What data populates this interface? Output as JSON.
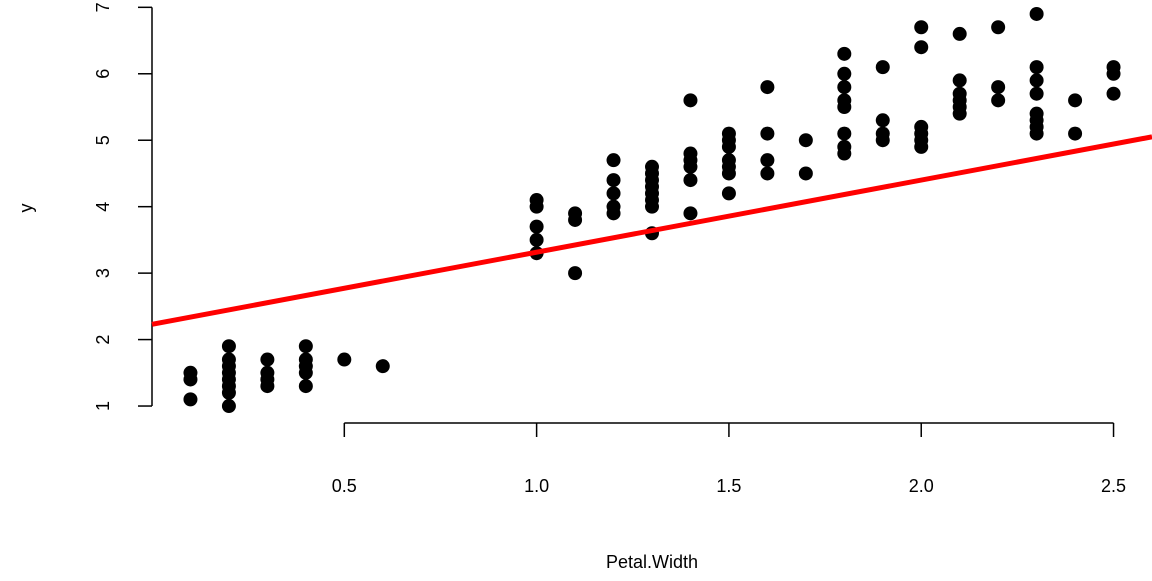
{
  "chart_data": {
    "type": "scatter",
    "title": "",
    "xlabel": "Petal.Width",
    "ylabel": "y",
    "xlim": [
      0.0,
      2.6
    ],
    "ylim": [
      0.85,
      7.05
    ],
    "x_ticks": [
      0.5,
      1.0,
      1.5,
      2.0,
      2.5
    ],
    "x_tick_labels": [
      "0.5",
      "1.0",
      "1.5",
      "2.0",
      "2.5"
    ],
    "y_ticks": [
      1,
      2,
      3,
      4,
      5,
      6,
      7
    ],
    "y_tick_labels": [
      "1",
      "2",
      "3",
      "4",
      "5",
      "6",
      "7"
    ],
    "grid": false,
    "legend": "none",
    "point_color": "#000000",
    "points": [
      [
        0.1,
        1.1
      ],
      [
        0.1,
        1.4
      ],
      [
        0.1,
        1.5
      ],
      [
        0.2,
        1.0
      ],
      [
        0.2,
        1.2
      ],
      [
        0.2,
        1.3
      ],
      [
        0.2,
        1.4
      ],
      [
        0.2,
        1.5
      ],
      [
        0.2,
        1.6
      ],
      [
        0.2,
        1.7
      ],
      [
        0.2,
        1.9
      ],
      [
        0.3,
        1.3
      ],
      [
        0.3,
        1.4
      ],
      [
        0.3,
        1.5
      ],
      [
        0.3,
        1.7
      ],
      [
        0.4,
        1.3
      ],
      [
        0.4,
        1.5
      ],
      [
        0.4,
        1.6
      ],
      [
        0.4,
        1.7
      ],
      [
        0.4,
        1.9
      ],
      [
        0.5,
        1.7
      ],
      [
        0.6,
        1.6
      ],
      [
        1.0,
        3.3
      ],
      [
        1.0,
        3.5
      ],
      [
        1.0,
        3.7
      ],
      [
        1.0,
        4.0
      ],
      [
        1.0,
        4.1
      ],
      [
        1.1,
        3.0
      ],
      [
        1.1,
        3.8
      ],
      [
        1.1,
        3.9
      ],
      [
        1.2,
        3.9
      ],
      [
        1.2,
        4.0
      ],
      [
        1.2,
        4.2
      ],
      [
        1.2,
        4.4
      ],
      [
        1.2,
        4.7
      ],
      [
        1.3,
        3.6
      ],
      [
        1.3,
        4.0
      ],
      [
        1.3,
        4.1
      ],
      [
        1.3,
        4.2
      ],
      [
        1.3,
        4.3
      ],
      [
        1.3,
        4.4
      ],
      [
        1.3,
        4.5
      ],
      [
        1.3,
        4.6
      ],
      [
        1.4,
        3.9
      ],
      [
        1.4,
        4.4
      ],
      [
        1.4,
        4.6
      ],
      [
        1.4,
        4.7
      ],
      [
        1.4,
        4.8
      ],
      [
        1.4,
        5.6
      ],
      [
        1.5,
        4.2
      ],
      [
        1.5,
        4.5
      ],
      [
        1.5,
        4.6
      ],
      [
        1.5,
        4.7
      ],
      [
        1.5,
        4.9
      ],
      [
        1.5,
        5.0
      ],
      [
        1.5,
        5.1
      ],
      [
        1.6,
        4.5
      ],
      [
        1.6,
        4.7
      ],
      [
        1.6,
        5.1
      ],
      [
        1.6,
        5.8
      ],
      [
        1.7,
        4.5
      ],
      [
        1.7,
        5.0
      ],
      [
        1.8,
        4.8
      ],
      [
        1.8,
        4.9
      ],
      [
        1.8,
        5.1
      ],
      [
        1.8,
        5.5
      ],
      [
        1.8,
        5.6
      ],
      [
        1.8,
        5.8
      ],
      [
        1.8,
        6.0
      ],
      [
        1.8,
        6.3
      ],
      [
        1.9,
        5.0
      ],
      [
        1.9,
        5.1
      ],
      [
        1.9,
        5.3
      ],
      [
        1.9,
        6.1
      ],
      [
        2.0,
        4.9
      ],
      [
        2.0,
        5.0
      ],
      [
        2.0,
        5.1
      ],
      [
        2.0,
        5.2
      ],
      [
        2.0,
        6.4
      ],
      [
        2.0,
        6.7
      ],
      [
        2.1,
        5.4
      ],
      [
        2.1,
        5.5
      ],
      [
        2.1,
        5.6
      ],
      [
        2.1,
        5.7
      ],
      [
        2.1,
        5.9
      ],
      [
        2.1,
        6.6
      ],
      [
        2.2,
        5.6
      ],
      [
        2.2,
        5.8
      ],
      [
        2.2,
        6.7
      ],
      [
        2.3,
        5.1
      ],
      [
        2.3,
        5.2
      ],
      [
        2.3,
        5.3
      ],
      [
        2.3,
        5.4
      ],
      [
        2.3,
        5.7
      ],
      [
        2.3,
        5.9
      ],
      [
        2.3,
        6.1
      ],
      [
        2.3,
        6.9
      ],
      [
        2.4,
        5.1
      ],
      [
        2.4,
        5.6
      ],
      [
        2.5,
        5.7
      ],
      [
        2.5,
        6.0
      ],
      [
        2.5,
        6.1
      ]
    ],
    "fit_line": {
      "color": "#ff0000",
      "intercept": 2.23,
      "slope": 1.085
    }
  }
}
